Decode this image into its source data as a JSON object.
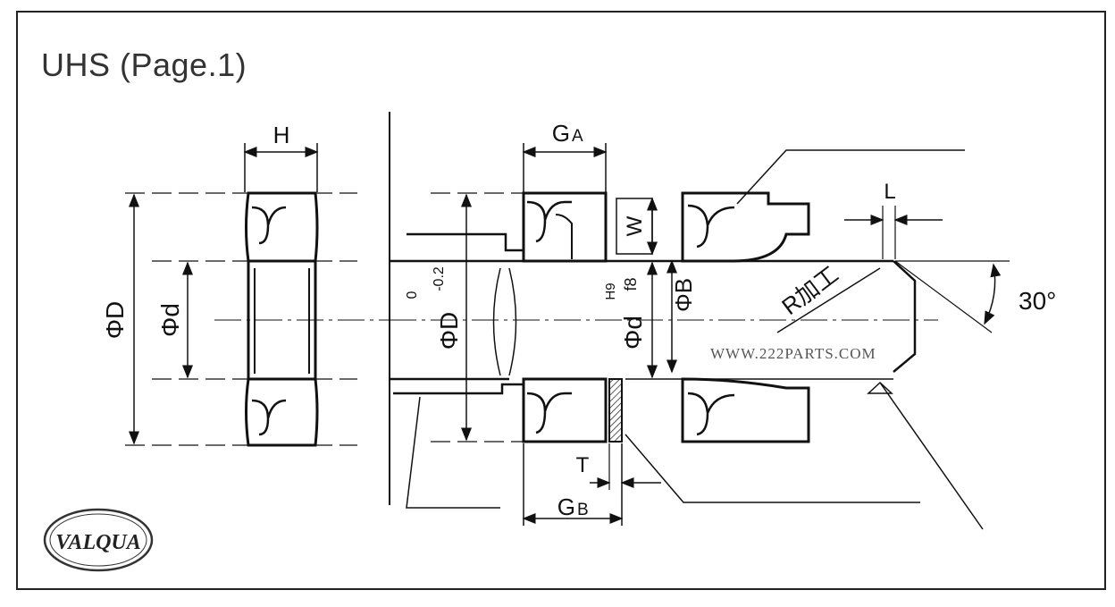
{
  "title": "UHS (Page.1)",
  "logo": {
    "text": "VALQUA"
  },
  "watermark": "WWW.222PARTS.COM",
  "labels": {
    "H": "H",
    "phi_D": "ΦD",
    "phi_d": "Φd",
    "G": "G",
    "A_sub": "A",
    "B_sub": "B",
    "W": "W",
    "L": "L",
    "T": "T",
    "phi_B": "ΦB",
    "tol_upper": "0",
    "tol_lower": "-0.2",
    "fit_hole": "H9",
    "fit_shaft": "f8",
    "r_machining": "R加工",
    "angle": "30°"
  }
}
